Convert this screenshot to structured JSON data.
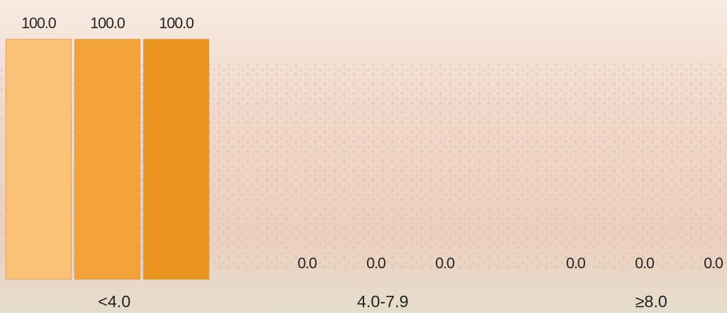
{
  "chart_data": {
    "type": "bar",
    "categories": [
      "<4.0",
      "4.0-7.9",
      "≥8.0"
    ],
    "series": [
      {
        "color": "#fbc177",
        "values": [
          100,
          0,
          0
        ],
        "value_labels": [
          "100.0",
          "0.0",
          "0.0"
        ]
      },
      {
        "color": "#f4a23a",
        "values": [
          100,
          0,
          0
        ],
        "value_labels": [
          "100.0",
          "0.0",
          "0.0"
        ]
      },
      {
        "color": "#e99520",
        "values": [
          100,
          0,
          0
        ],
        "value_labels": [
          "100.0",
          "0.0",
          "0.0"
        ]
      }
    ],
    "ylim": [
      0,
      100
    ]
  }
}
